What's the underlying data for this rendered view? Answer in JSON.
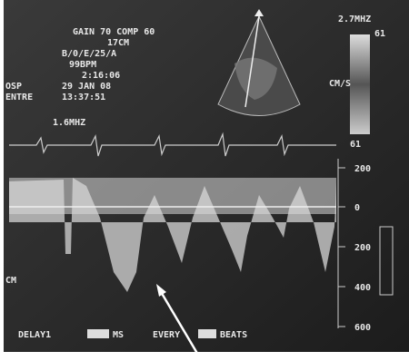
{
  "header": {
    "settings": "GAIN 70 COMP 60",
    "depth": "17CM",
    "mode": "B/0/E/25/A",
    "heart_rate": "99BPM",
    "elapsed": "2:16:06",
    "date": "29 JAN 08",
    "time": "13:37:51",
    "site_1": "OSP",
    "site_2": "ENTRE",
    "doppler_freq": "1.6MHZ"
  },
  "color_bar": {
    "freq": "2.7MHZ",
    "top": "61",
    "unit": "CM/S",
    "bottom": "61"
  },
  "velocity_scale": {
    "labels": [
      "200",
      "0",
      "200",
      "400",
      "600"
    ],
    "unit": "CM"
  },
  "footer": {
    "delay": "DELAY1",
    "delay_unit": "MS",
    "every": "EVERY",
    "beats": "BEATS"
  }
}
